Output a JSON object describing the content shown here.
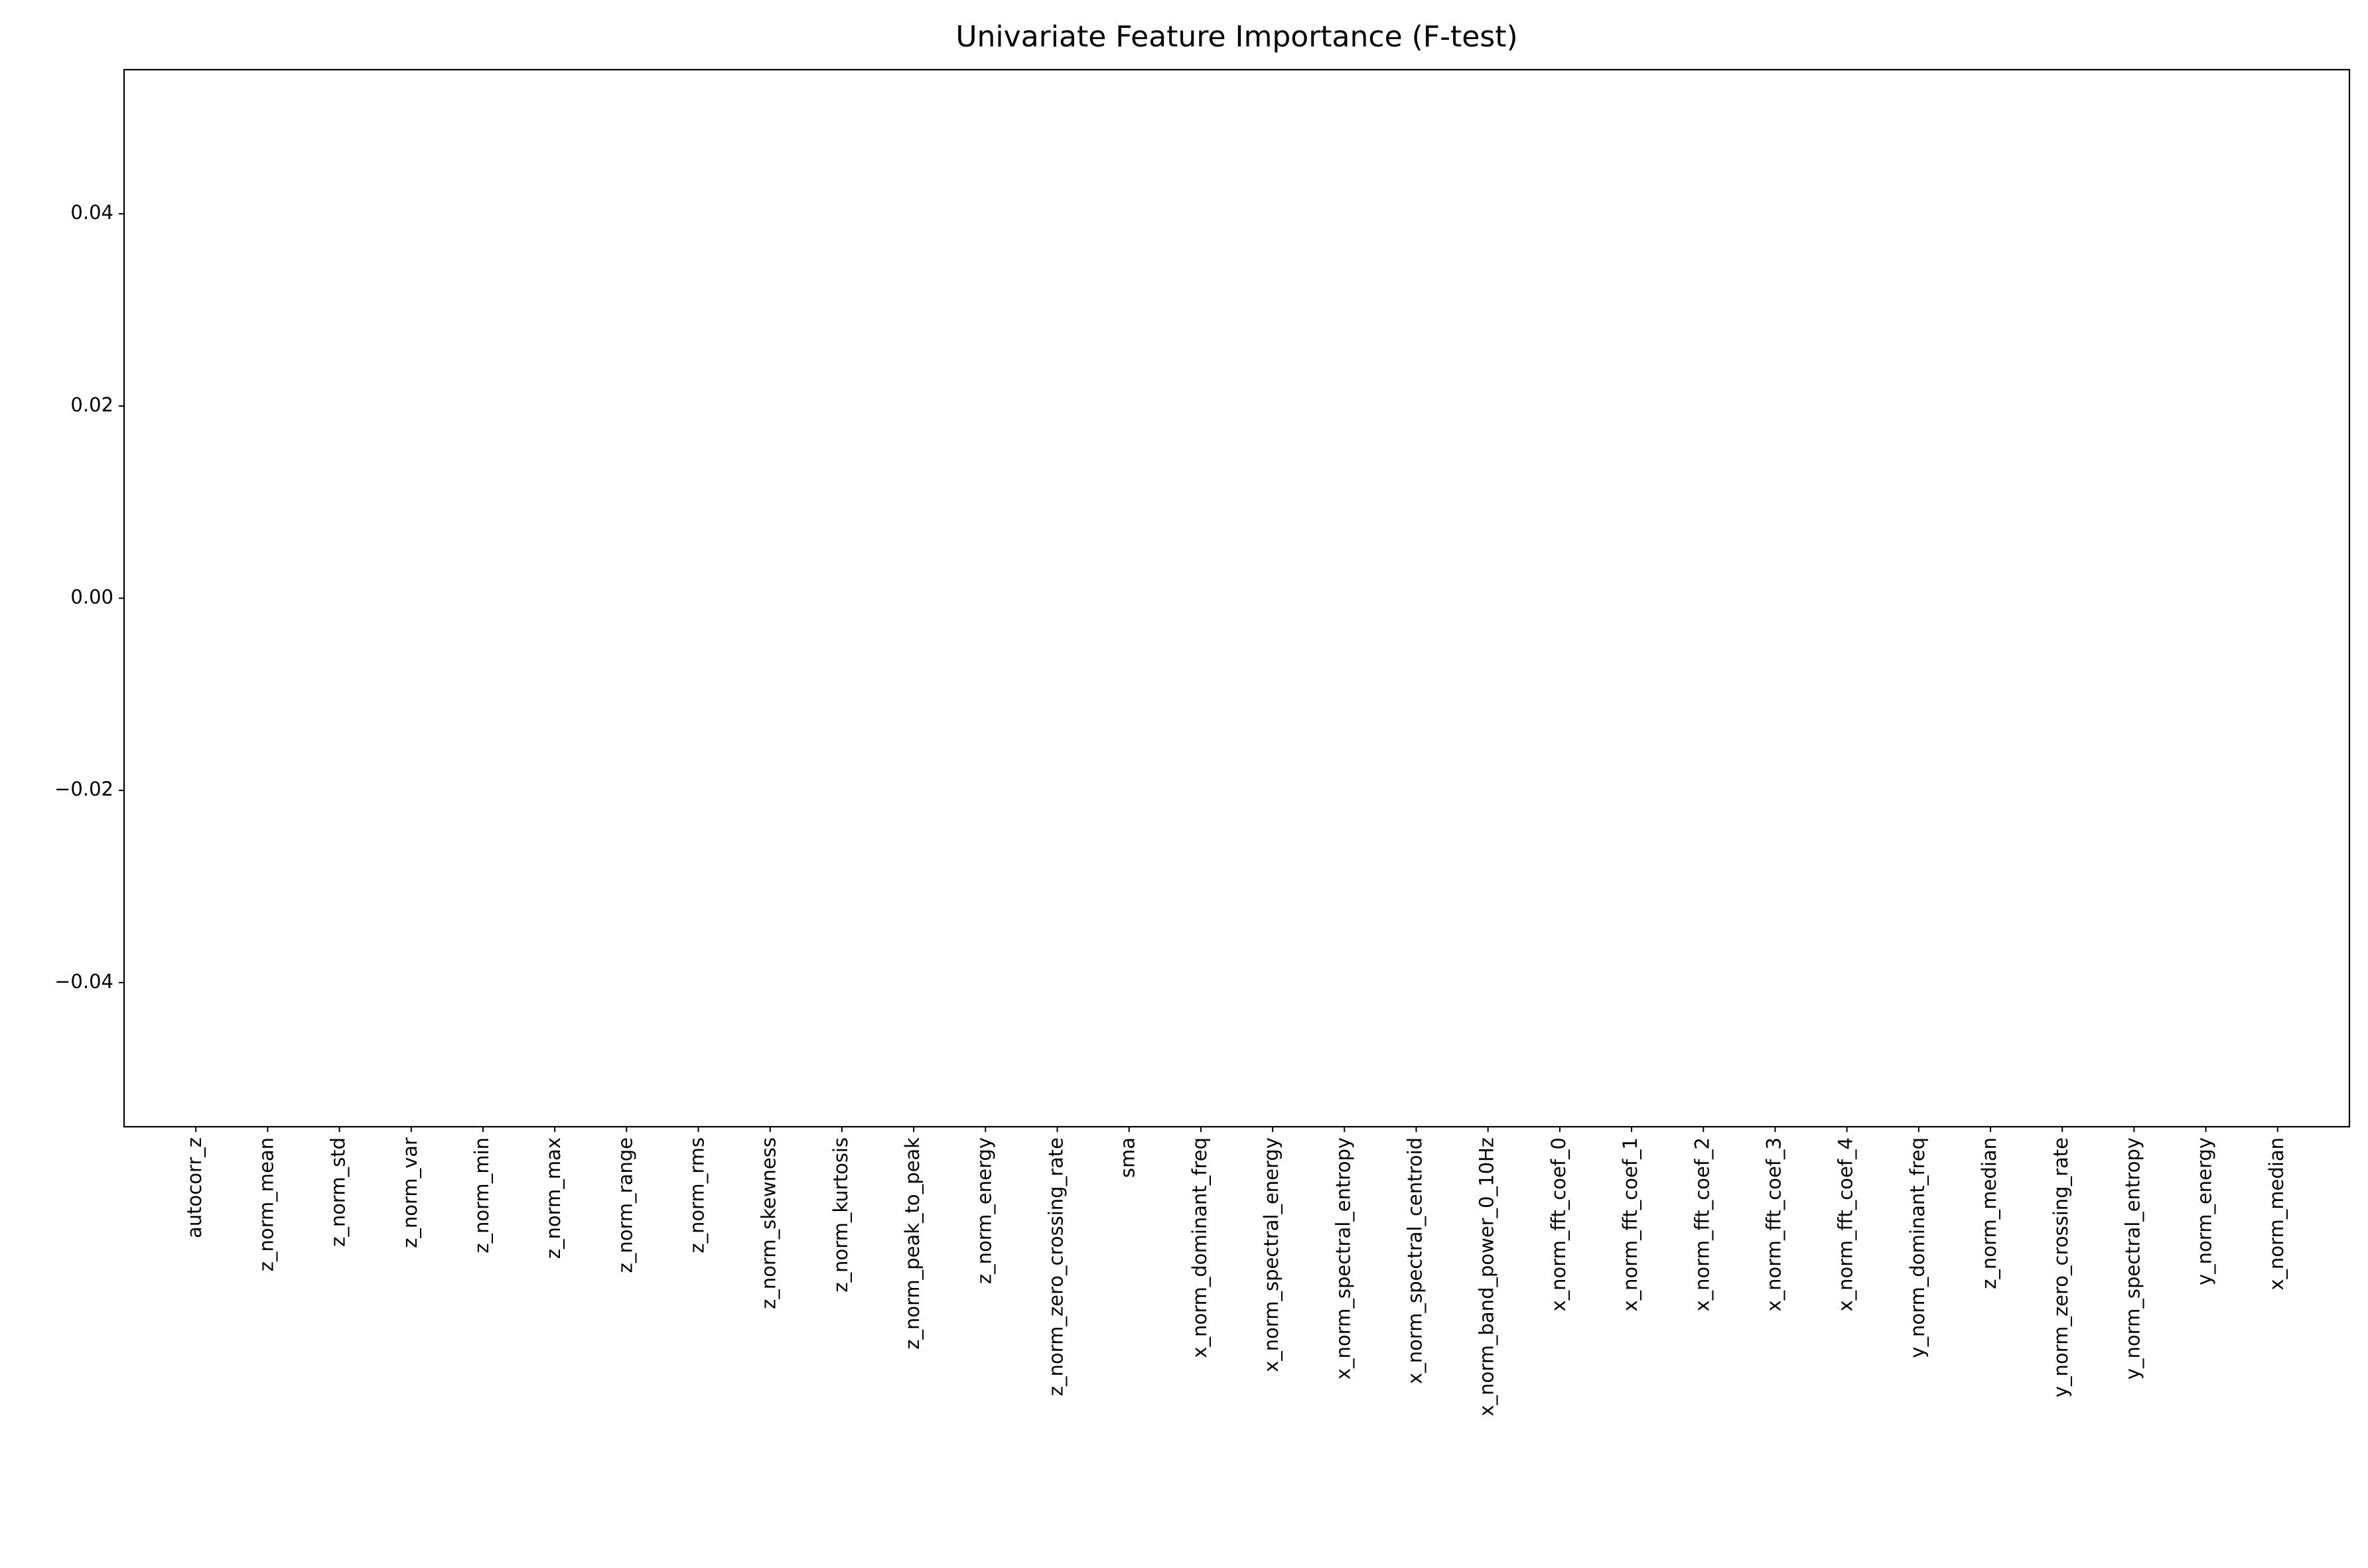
{
  "chart_data": {
    "type": "bar",
    "title": "Univariate Feature Importance (F-test)",
    "categories": [
      "autocorr_z",
      "z_norm_mean",
      "z_norm_std",
      "z_norm_var",
      "z_norm_min",
      "z_norm_max",
      "z_norm_range",
      "z_norm_rms",
      "z_norm_skewness",
      "z_norm_kurtosis",
      "z_norm_peak_to_peak",
      "z_norm_energy",
      "z_norm_zero_crossing_rate",
      "sma",
      "x_norm_dominant_freq",
      "x_norm_spectral_energy",
      "x_norm_spectral_entropy",
      "x_norm_spectral_centroid",
      "x_norm_band_power_0_10Hz",
      "x_norm_fft_coef_0",
      "x_norm_fft_coef_1",
      "x_norm_fft_coef_2",
      "x_norm_fft_coef_3",
      "x_norm_fft_coef_4",
      "y_norm_dominant_freq",
      "z_norm_median",
      "y_norm_zero_crossing_rate",
      "y_norm_spectral_entropy",
      "y_norm_energy",
      "x_norm_median"
    ],
    "values": [
      0,
      0,
      0,
      0,
      0,
      0,
      0,
      0,
      0,
      0,
      0,
      0,
      0,
      0,
      0,
      0,
      0,
      0,
      0,
      0,
      0,
      0,
      0,
      0,
      0,
      0,
      0,
      0,
      0,
      0
    ],
    "color": "#1f77b4",
    "ylim": [
      -0.055,
      0.055
    ],
    "yticks": [
      {
        "value": -0.04,
        "label": "−0.04"
      },
      {
        "value": -0.02,
        "label": "−0.02"
      },
      {
        "value": 0,
        "label": "0.00"
      },
      0.02,
      0.04
    ],
    "grid": false
  }
}
